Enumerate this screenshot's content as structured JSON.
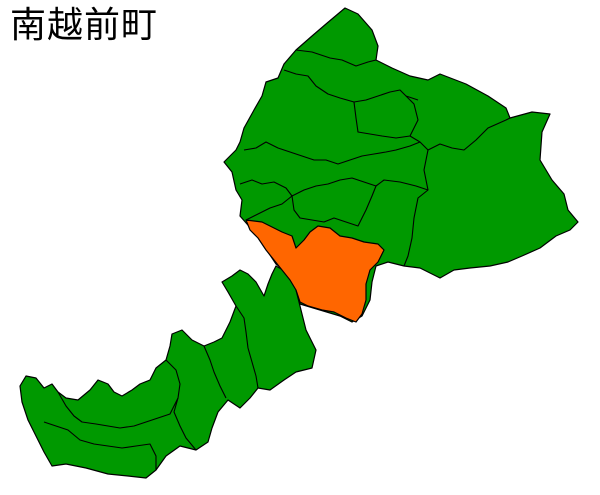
{
  "title": "南越前町",
  "map": {
    "highlight_color": "#ff6600",
    "base_color": "#009900",
    "border_color": "#000000"
  }
}
